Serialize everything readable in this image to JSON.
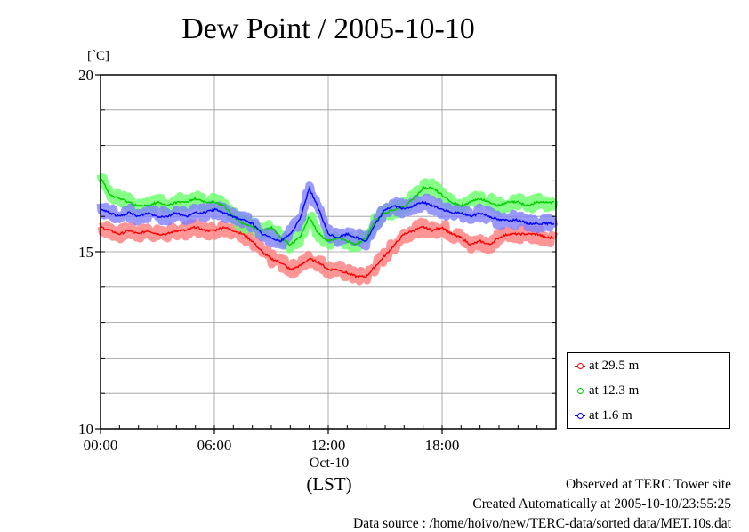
{
  "title": "Dew Point / 2005-10-10",
  "unit_label": "[˚C]",
  "footer": {
    "line1": "Observed at TERC Tower site",
    "line2": "Created Automatically at 2005-10-10/23:55:25",
    "line3": "Data source : /home/hoivo/new/TERC-data/sorted  data/MET.10s.dat"
  },
  "chart_data": {
    "type": "line",
    "title": "Dew Point / 2005-10-10",
    "ylabel": "[˚C]",
    "xlabel": "(LST)",
    "date_label": "Oct-10",
    "ylim": [
      10,
      20
    ],
    "xlim": [
      0,
      24
    ],
    "y_ticks": [
      10,
      15,
      20
    ],
    "y_gridlines": [
      11,
      12,
      13,
      14,
      15,
      16,
      17,
      18,
      19
    ],
    "x_ticks": [
      {
        "value": 0,
        "label": "00:00"
      },
      {
        "value": 6,
        "label": "06:00"
      },
      {
        "value": 12,
        "label": "12:00"
      },
      {
        "value": 18,
        "label": "18:00"
      }
    ],
    "x_gridlines": [
      6,
      12,
      18
    ],
    "grid": true,
    "legend_position": "bottom-right, outside plot",
    "x": [
      0,
      0.5,
      1,
      1.5,
      2,
      2.5,
      3,
      3.5,
      4,
      4.5,
      5,
      5.5,
      6,
      6.5,
      7,
      7.5,
      8,
      8.5,
      9,
      9.5,
      10,
      10.5,
      11,
      11.5,
      12,
      12.5,
      13,
      13.5,
      14,
      14.5,
      15,
      15.5,
      16,
      16.5,
      17,
      17.5,
      18,
      18.5,
      19,
      19.5,
      20,
      20.5,
      21,
      21.5,
      22,
      22.5,
      23,
      23.5
    ],
    "series": [
      {
        "name": "at 29.5 m",
        "color": "#ff0000",
        "band_color": "#ff7a7a",
        "values": [
          15.7,
          15.6,
          15.5,
          15.6,
          15.5,
          15.6,
          15.5,
          15.5,
          15.6,
          15.6,
          15.7,
          15.6,
          15.6,
          15.7,
          15.6,
          15.5,
          15.3,
          15.0,
          14.8,
          14.7,
          14.5,
          14.6,
          14.8,
          14.7,
          14.5,
          14.5,
          14.4,
          14.3,
          14.3,
          14.6,
          14.9,
          15.2,
          15.5,
          15.6,
          15.7,
          15.6,
          15.7,
          15.5,
          15.4,
          15.2,
          15.3,
          15.2,
          15.4,
          15.5,
          15.5,
          15.5,
          15.5,
          15.4
        ]
      },
      {
        "name": "at 12.3 m",
        "color": "#00cc00",
        "band_color": "#66ff66",
        "values": [
          17.1,
          16.6,
          16.5,
          16.4,
          16.3,
          16.3,
          16.4,
          16.3,
          16.4,
          16.4,
          16.5,
          16.4,
          16.4,
          16.3,
          16.0,
          15.8,
          15.7,
          15.6,
          15.7,
          15.4,
          15.2,
          15.4,
          16.0,
          15.5,
          15.3,
          15.4,
          15.3,
          15.2,
          15.4,
          15.9,
          16.1,
          16.2,
          16.3,
          16.5,
          16.8,
          16.8,
          16.6,
          16.4,
          16.3,
          16.4,
          16.5,
          16.4,
          16.3,
          16.4,
          16.4,
          16.3,
          16.4,
          16.4
        ]
      },
      {
        "name": "at 1.6 m",
        "color": "#0000ff",
        "band_color": "#8080ff",
        "values": [
          16.2,
          16.1,
          16.0,
          16.1,
          16.0,
          16.1,
          16.0,
          16.0,
          16.1,
          16.0,
          16.1,
          16.1,
          16.2,
          16.1,
          16.0,
          15.9,
          15.8,
          15.5,
          15.4,
          15.3,
          15.5,
          15.9,
          16.8,
          16.2,
          15.5,
          15.4,
          15.5,
          15.4,
          15.3,
          15.8,
          16.2,
          16.3,
          16.2,
          16.3,
          16.4,
          16.3,
          16.2,
          16.1,
          16.1,
          16.0,
          16.1,
          16.0,
          15.9,
          15.9,
          15.9,
          15.8,
          15.8,
          15.8
        ]
      }
    ]
  }
}
